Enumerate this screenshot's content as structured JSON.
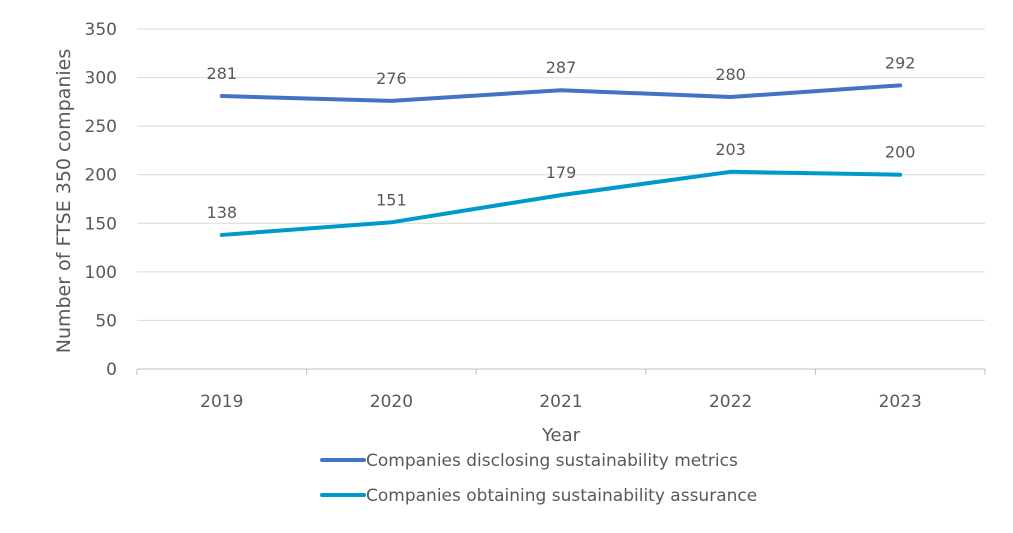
{
  "chart_data": {
    "type": "line",
    "categories": [
      "2019",
      "2020",
      "2021",
      "2022",
      "2023"
    ],
    "series": [
      {
        "name": "Companies disclosing sustainability metrics",
        "values": [
          281,
          276,
          287,
          280,
          292
        ],
        "color": "#4472C4"
      },
      {
        "name": "Companies obtaining sustainability assurance",
        "values": [
          138,
          151,
          179,
          203,
          200
        ],
        "color": "#0099CC"
      }
    ],
    "xlabel": "Year",
    "ylabel": "Number of FTSE 350 companies",
    "ylim": [
      0,
      350
    ],
    "yticks": [
      0,
      50,
      100,
      150,
      200,
      250,
      300,
      350
    ],
    "grid": true,
    "legend": "bottom",
    "data_labels": true
  }
}
